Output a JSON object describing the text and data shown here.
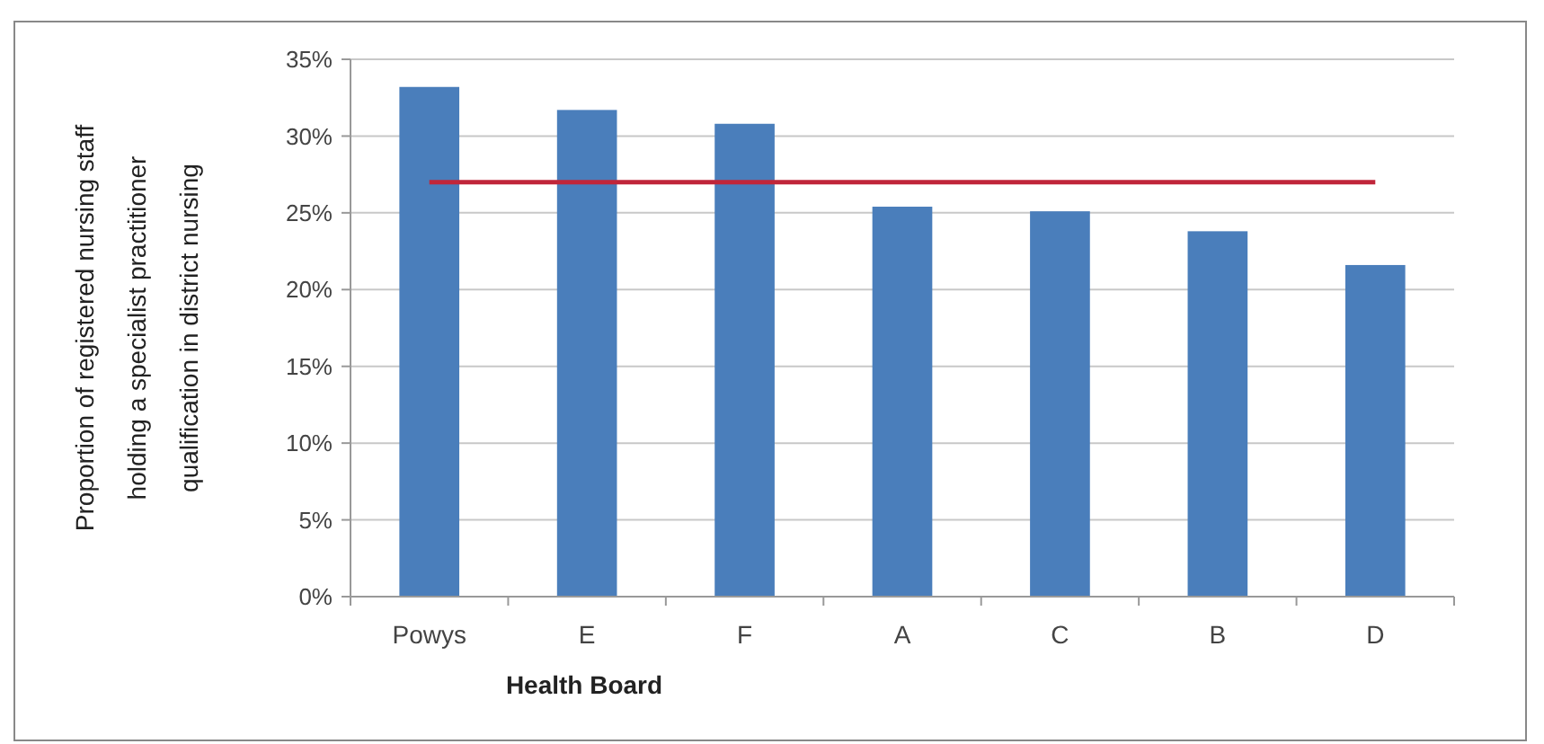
{
  "chart_data": {
    "type": "bar",
    "xlabel": "Health Board",
    "ylabel": "Proportion of registered nursing staff holding a specialist practitioner qualification in district nursing",
    "categories": [
      "Powys",
      "E",
      "F",
      "A",
      "C",
      "B",
      "D"
    ],
    "values": [
      33.2,
      31.7,
      30.8,
      25.4,
      25.1,
      23.8,
      21.6
    ],
    "color": "#4a7ebb",
    "ylim": [
      0,
      35
    ],
    "yticks": [
      {
        "value": 0,
        "label": "0%"
      },
      {
        "value": 5,
        "label": "5%"
      },
      {
        "value": 10,
        "label": "10%"
      },
      {
        "value": 15,
        "label": "15%"
      },
      {
        "value": 20,
        "label": "20%"
      },
      {
        "value": 25,
        "label": "25%"
      },
      {
        "value": 30,
        "label": "30%"
      },
      {
        "value": 35,
        "label": "35%"
      }
    ],
    "grid": "y",
    "ref_lines": [
      {
        "axis": "y",
        "value": 27,
        "color": "#c0263a"
      }
    ]
  }
}
